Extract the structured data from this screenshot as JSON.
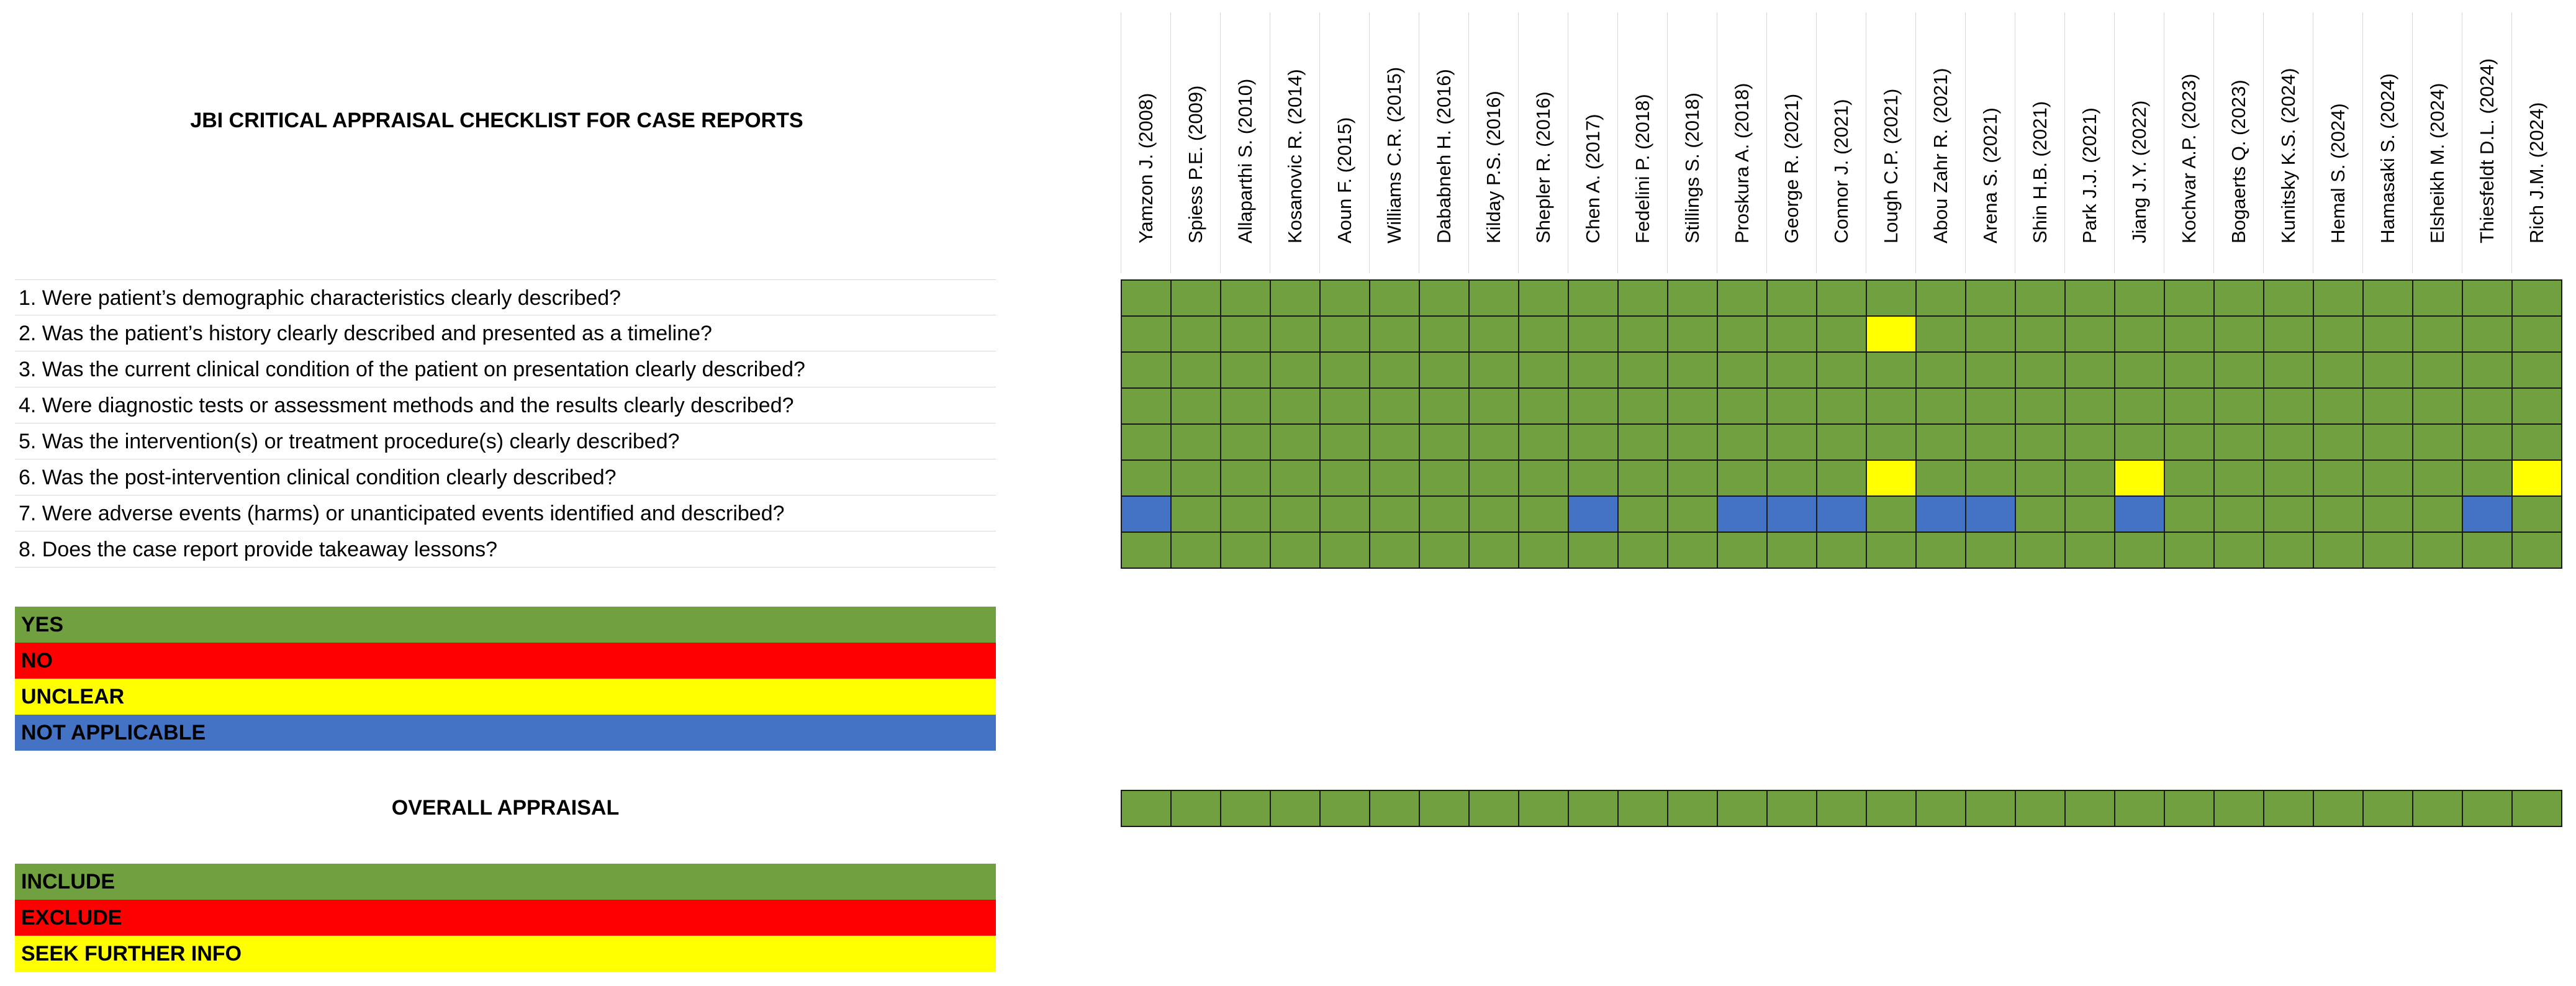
{
  "title": "JBI CRITICAL APPRAISAL CHECKLIST FOR CASE REPORTS",
  "questions": [
    "1. Were patient’s demographic characteristics clearly described?",
    "2. Was the patient’s history clearly described and presented as a timeline?",
    "3. Was the current clinical condition of the patient on presentation clearly described?",
    "4. Were diagnostic tests or assessment methods and the results clearly described?",
    "5. Was the intervention(s) or treatment procedure(s) clearly described?",
    "6. Was the post-intervention clinical condition clearly described?",
    "7. Were adverse events (harms) or unanticipated events identified and described?",
    "8. Does the case report provide takeaway lessons?"
  ],
  "legend": [
    {
      "label": "YES",
      "color": "#70a040",
      "code": "Y"
    },
    {
      "label": "NO",
      "color": "#ff0000",
      "code": "N"
    },
    {
      "label": "UNCLEAR",
      "color": "#ffff00",
      "code": "U"
    },
    {
      "label": "NOT APPLICABLE",
      "color": "#4472c4",
      "code": "NA"
    }
  ],
  "overall_label": "OVERALL APPRAISAL",
  "overall_legend": [
    {
      "label": "INCLUDE",
      "color": "#70a040",
      "code": "I"
    },
    {
      "label": "EXCLUDE",
      "color": "#ff0000",
      "code": "E"
    },
    {
      "label": "SEEK FURTHER INFO",
      "color": "#ffff00",
      "code": "S"
    }
  ],
  "chart_data": {
    "type": "table",
    "studies": [
      "Yamzon J. (2008)",
      "Spiess P.E. (2009)",
      "Allaparthi S. (2010)",
      "Kosanovic R. (2014)",
      "Aoun F. (2015)",
      "Williams C.R. (2015)",
      "Dababneh H. (2016)",
      "Kilday P.S. (2016)",
      "Shepler R. (2016)",
      "Chen A. (2017)",
      "Fedelini P. (2018)",
      "Stillings S. (2018)",
      "Proskura A. (2018)",
      "George R. (2021)",
      "Connor J. (2021)",
      "Lough C.P. (2021)",
      "Abou Zahr R. (2021)",
      "Arena S. (2021)",
      "Shin H.B. (2021)",
      "Park J.J. (2021)",
      "Jiang J.Y. (2022)",
      "Kochvar A.P. (2023)",
      "Bogaerts Q. (2023)",
      "Kunitsky K.S. (2024)",
      "Hemal S. (2024)",
      "Hamasaki S. (2024)",
      "Elsheikh M. (2024)",
      "Thiesfeldt D.L. (2024)",
      "Rich J.M. (2024)"
    ],
    "ratings": [
      [
        "Y",
        "Y",
        "Y",
        "Y",
        "Y",
        "Y",
        "Y",
        "Y",
        "Y",
        "Y",
        "Y",
        "Y",
        "Y",
        "Y",
        "Y",
        "Y",
        "Y",
        "Y",
        "Y",
        "Y",
        "Y",
        "Y",
        "Y",
        "Y",
        "Y",
        "Y",
        "Y",
        "Y",
        "Y"
      ],
      [
        "Y",
        "Y",
        "Y",
        "Y",
        "Y",
        "Y",
        "Y",
        "Y",
        "Y",
        "Y",
        "Y",
        "Y",
        "Y",
        "Y",
        "Y",
        "U",
        "Y",
        "Y",
        "Y",
        "Y",
        "Y",
        "Y",
        "Y",
        "Y",
        "Y",
        "Y",
        "Y",
        "Y",
        "Y"
      ],
      [
        "Y",
        "Y",
        "Y",
        "Y",
        "Y",
        "Y",
        "Y",
        "Y",
        "Y",
        "Y",
        "Y",
        "Y",
        "Y",
        "Y",
        "Y",
        "Y",
        "Y",
        "Y",
        "Y",
        "Y",
        "Y",
        "Y",
        "Y",
        "Y",
        "Y",
        "Y",
        "Y",
        "Y",
        "Y"
      ],
      [
        "Y",
        "Y",
        "Y",
        "Y",
        "Y",
        "Y",
        "Y",
        "Y",
        "Y",
        "Y",
        "Y",
        "Y",
        "Y",
        "Y",
        "Y",
        "Y",
        "Y",
        "Y",
        "Y",
        "Y",
        "Y",
        "Y",
        "Y",
        "Y",
        "Y",
        "Y",
        "Y",
        "Y",
        "Y"
      ],
      [
        "Y",
        "Y",
        "Y",
        "Y",
        "Y",
        "Y",
        "Y",
        "Y",
        "Y",
        "Y",
        "Y",
        "Y",
        "Y",
        "Y",
        "Y",
        "Y",
        "Y",
        "Y",
        "Y",
        "Y",
        "Y",
        "Y",
        "Y",
        "Y",
        "Y",
        "Y",
        "Y",
        "Y",
        "Y"
      ],
      [
        "Y",
        "Y",
        "Y",
        "Y",
        "Y",
        "Y",
        "Y",
        "Y",
        "Y",
        "Y",
        "Y",
        "Y",
        "Y",
        "Y",
        "Y",
        "U",
        "Y",
        "Y",
        "Y",
        "Y",
        "U",
        "Y",
        "Y",
        "Y",
        "Y",
        "Y",
        "Y",
        "Y",
        "U"
      ],
      [
        "NA",
        "Y",
        "Y",
        "Y",
        "Y",
        "Y",
        "Y",
        "Y",
        "Y",
        "NA",
        "Y",
        "Y",
        "NA",
        "NA",
        "NA",
        "Y",
        "NA",
        "NA",
        "Y",
        "Y",
        "NA",
        "Y",
        "Y",
        "Y",
        "Y",
        "Y",
        "Y",
        "NA",
        "Y"
      ],
      [
        "Y",
        "Y",
        "Y",
        "Y",
        "Y",
        "Y",
        "Y",
        "Y",
        "Y",
        "Y",
        "Y",
        "Y",
        "Y",
        "Y",
        "Y",
        "Y",
        "Y",
        "Y",
        "Y",
        "Y",
        "Y",
        "Y",
        "Y",
        "Y",
        "Y",
        "Y",
        "Y",
        "Y",
        "Y"
      ]
    ],
    "overall": [
      "I",
      "I",
      "I",
      "I",
      "I",
      "I",
      "I",
      "I",
      "I",
      "I",
      "I",
      "I",
      "I",
      "I",
      "I",
      "I",
      "I",
      "I",
      "I",
      "I",
      "I",
      "I",
      "I",
      "I",
      "I",
      "I",
      "I",
      "I",
      "I"
    ]
  }
}
